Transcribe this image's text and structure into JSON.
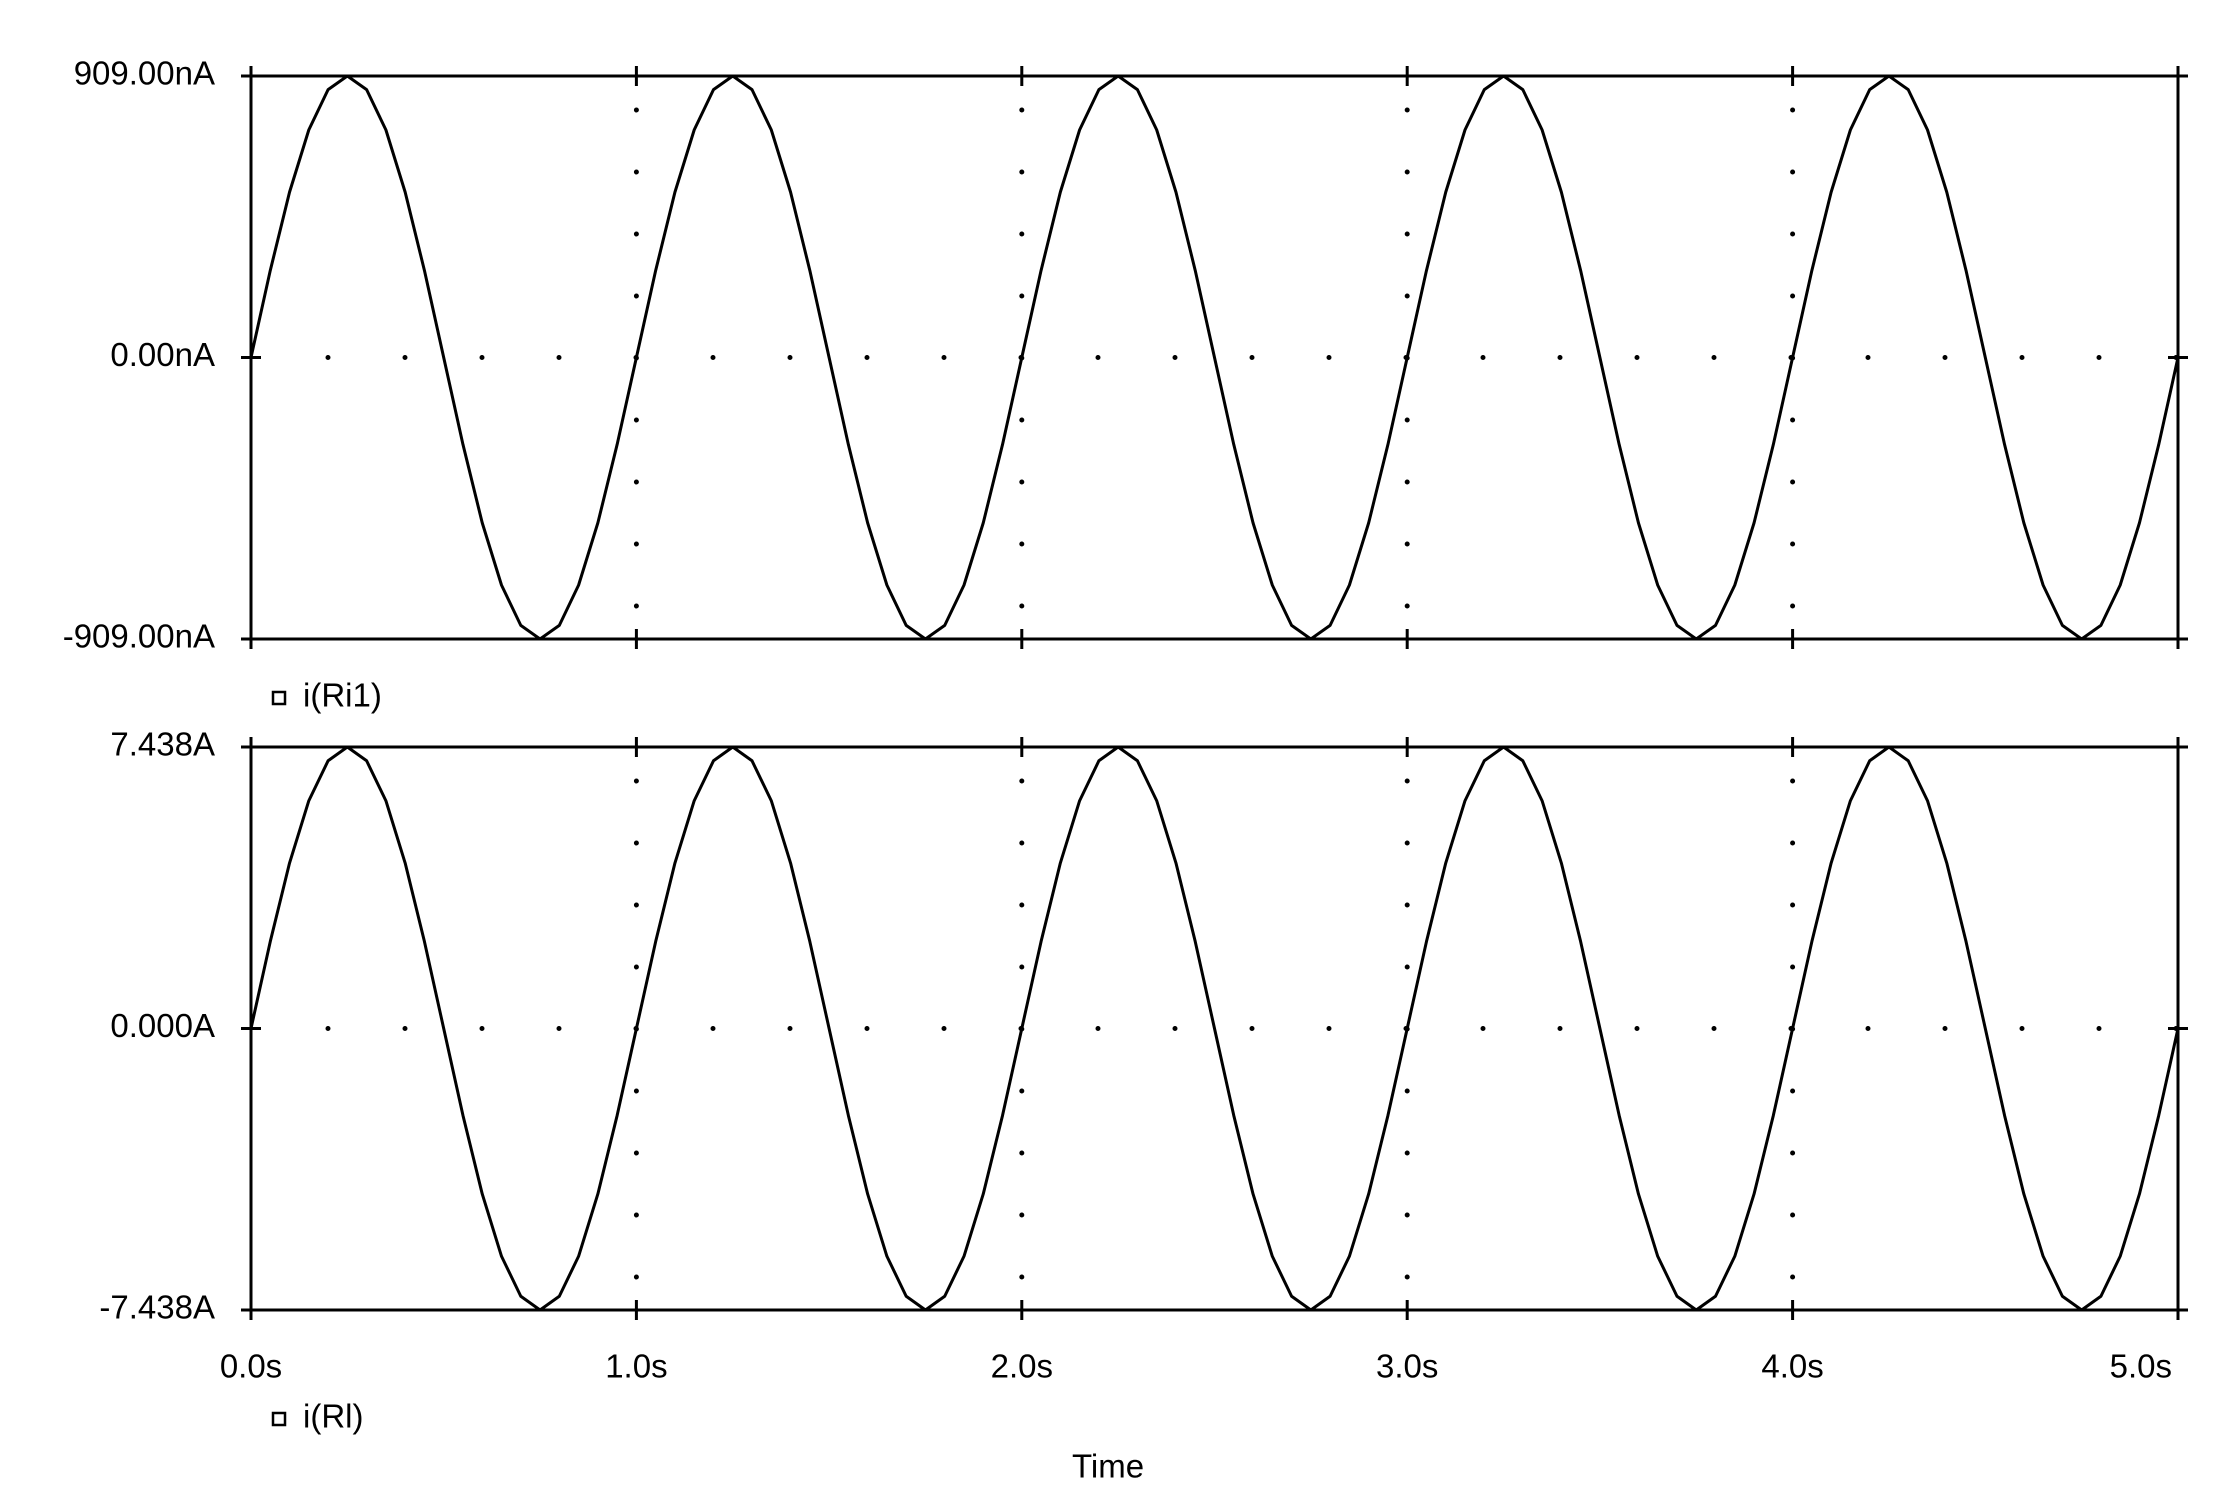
{
  "chart_data": [
    {
      "type": "line",
      "series": [
        {
          "name": "i(Ri1)",
          "color": "#000000",
          "values": [
            0,
            281,
            534,
            735,
            865,
            909,
            865,
            735,
            534,
            281,
            0,
            -281,
            -534,
            -735,
            -865,
            -909,
            -865,
            -735,
            -534,
            -281,
            0,
            281,
            534,
            735,
            865,
            909,
            865,
            735,
            534,
            281,
            0,
            -281,
            -534,
            -735,
            -865,
            -909,
            -865,
            -735,
            -534,
            -281,
            0,
            281,
            534,
            735,
            865,
            909,
            865,
            735,
            534,
            281,
            0,
            -281,
            -534,
            -735,
            -865,
            -909,
            -865,
            -735,
            -534,
            -281,
            0,
            281,
            534,
            735,
            865,
            909,
            865,
            735,
            534,
            281,
            0,
            -281,
            -534,
            -735,
            -865,
            -909,
            -865,
            -735,
            -534,
            -281,
            0,
            281,
            534,
            735,
            865,
            909,
            865,
            735,
            534,
            281,
            0,
            -281,
            -534,
            -735,
            -865,
            -909,
            -865,
            -735,
            -534,
            -281,
            0
          ]
        }
      ],
      "x": [
        0,
        0.05,
        0.1,
        0.15,
        0.2,
        0.25,
        0.3,
        0.35,
        0.4,
        0.45,
        0.5,
        0.55,
        0.6,
        0.65,
        0.7,
        0.75,
        0.8,
        0.85,
        0.9,
        0.95,
        1,
        1.05,
        1.1,
        1.15,
        1.2,
        1.25,
        1.3,
        1.35,
        1.4,
        1.45,
        1.5,
        1.55,
        1.6,
        1.65,
        1.7,
        1.75,
        1.8,
        1.85,
        1.9,
        1.95,
        2,
        2.05,
        2.1,
        2.15,
        2.2,
        2.25,
        2.3,
        2.35,
        2.4,
        2.45,
        2.5,
        2.55,
        2.6,
        2.65,
        2.7,
        2.75,
        2.8,
        2.85,
        2.9,
        2.95,
        3,
        3.05,
        3.1,
        3.15,
        3.2,
        3.25,
        3.3,
        3.35,
        3.4,
        3.45,
        3.5,
        3.55,
        3.6,
        3.65,
        3.7,
        3.75,
        3.8,
        3.85,
        3.9,
        3.95,
        4,
        4.05,
        4.1,
        4.15,
        4.2,
        4.25,
        4.3,
        4.35,
        4.4,
        4.45,
        4.5,
        4.55,
        4.6,
        4.65,
        4.7,
        4.75,
        4.8,
        4.85,
        4.9,
        4.95,
        5
      ],
      "xlim": [
        0,
        5
      ],
      "xticks": [
        0,
        1,
        2,
        3,
        4,
        5
      ],
      "ylim": [
        -909,
        909
      ],
      "yticks": [
        {
          "value": 909,
          "label": "909.00nA"
        },
        {
          "value": 0,
          "label": "0.00nA"
        },
        {
          "value": -909,
          "label": "-909.00nA"
        }
      ],
      "grid": true
    },
    {
      "type": "line",
      "xlabel": "Time",
      "series": [
        {
          "name": "i(Rl)",
          "color": "#000000",
          "values": [
            0,
            2.298,
            4.372,
            6.018,
            7.074,
            7.438,
            7.074,
            6.018,
            4.372,
            2.298,
            0,
            -2.298,
            -4.372,
            -6.018,
            -7.074,
            -7.438,
            -7.074,
            -6.018,
            -4.372,
            -2.298,
            0,
            2.298,
            4.372,
            6.018,
            7.074,
            7.438,
            7.074,
            6.018,
            4.372,
            2.298,
            0,
            -2.298,
            -4.372,
            -6.018,
            -7.074,
            -7.438,
            -7.074,
            -6.018,
            -4.372,
            -2.298,
            0,
            2.298,
            4.372,
            6.018,
            7.074,
            7.438,
            7.074,
            6.018,
            4.372,
            2.298,
            0,
            -2.298,
            -4.372,
            -6.018,
            -7.074,
            -7.438,
            -7.074,
            -6.018,
            -4.372,
            -2.298,
            0,
            2.298,
            4.372,
            6.018,
            7.074,
            7.438,
            7.074,
            6.018,
            4.372,
            2.298,
            0,
            -2.298,
            -4.372,
            -6.018,
            -7.074,
            -7.438,
            -7.074,
            -6.018,
            -4.372,
            -2.298,
            0,
            2.298,
            4.372,
            6.018,
            7.074,
            7.438,
            7.074,
            6.018,
            4.372,
            2.298,
            0,
            -2.298,
            -4.372,
            -6.018,
            -7.074,
            -7.438,
            -7.074,
            -6.018,
            -4.372,
            -2.298,
            0
          ]
        }
      ],
      "x": [
        0,
        0.05,
        0.1,
        0.15,
        0.2,
        0.25,
        0.3,
        0.35,
        0.4,
        0.45,
        0.5,
        0.55,
        0.6,
        0.65,
        0.7,
        0.75,
        0.8,
        0.85,
        0.9,
        0.95,
        1,
        1.05,
        1.1,
        1.15,
        1.2,
        1.25,
        1.3,
        1.35,
        1.4,
        1.45,
        1.5,
        1.55,
        1.6,
        1.65,
        1.7,
        1.75,
        1.8,
        1.85,
        1.9,
        1.95,
        2,
        2.05,
        2.1,
        2.15,
        2.2,
        2.25,
        2.3,
        2.35,
        2.4,
        2.45,
        2.5,
        2.55,
        2.6,
        2.65,
        2.7,
        2.75,
        2.8,
        2.85,
        2.9,
        2.95,
        3,
        3.05,
        3.1,
        3.15,
        3.2,
        3.25,
        3.3,
        3.35,
        3.4,
        3.45,
        3.5,
        3.55,
        3.6,
        3.65,
        3.7,
        3.75,
        3.8,
        3.85,
        3.9,
        3.95,
        4,
        4.05,
        4.1,
        4.15,
        4.2,
        4.25,
        4.3,
        4.35,
        4.4,
        4.45,
        4.5,
        4.55,
        4.6,
        4.65,
        4.7,
        4.75,
        4.8,
        4.85,
        4.9,
        4.95,
        5
      ],
      "xlim": [
        0,
        5
      ],
      "xticks": [
        {
          "value": 0,
          "label": "0.0s"
        },
        {
          "value": 1,
          "label": "1.0s"
        },
        {
          "value": 2,
          "label": "2.0s"
        },
        {
          "value": 3,
          "label": "3.0s"
        },
        {
          "value": 4,
          "label": "4.0s"
        },
        {
          "value": 5,
          "label": "5.0s"
        }
      ],
      "ylim": [
        -7.438,
        7.438
      ],
      "yticks": [
        {
          "value": 7.438,
          "label": "7.438A"
        },
        {
          "value": 0,
          "label": "0.000A"
        },
        {
          "value": -7.438,
          "label": "-7.438A"
        }
      ],
      "grid": true
    }
  ]
}
